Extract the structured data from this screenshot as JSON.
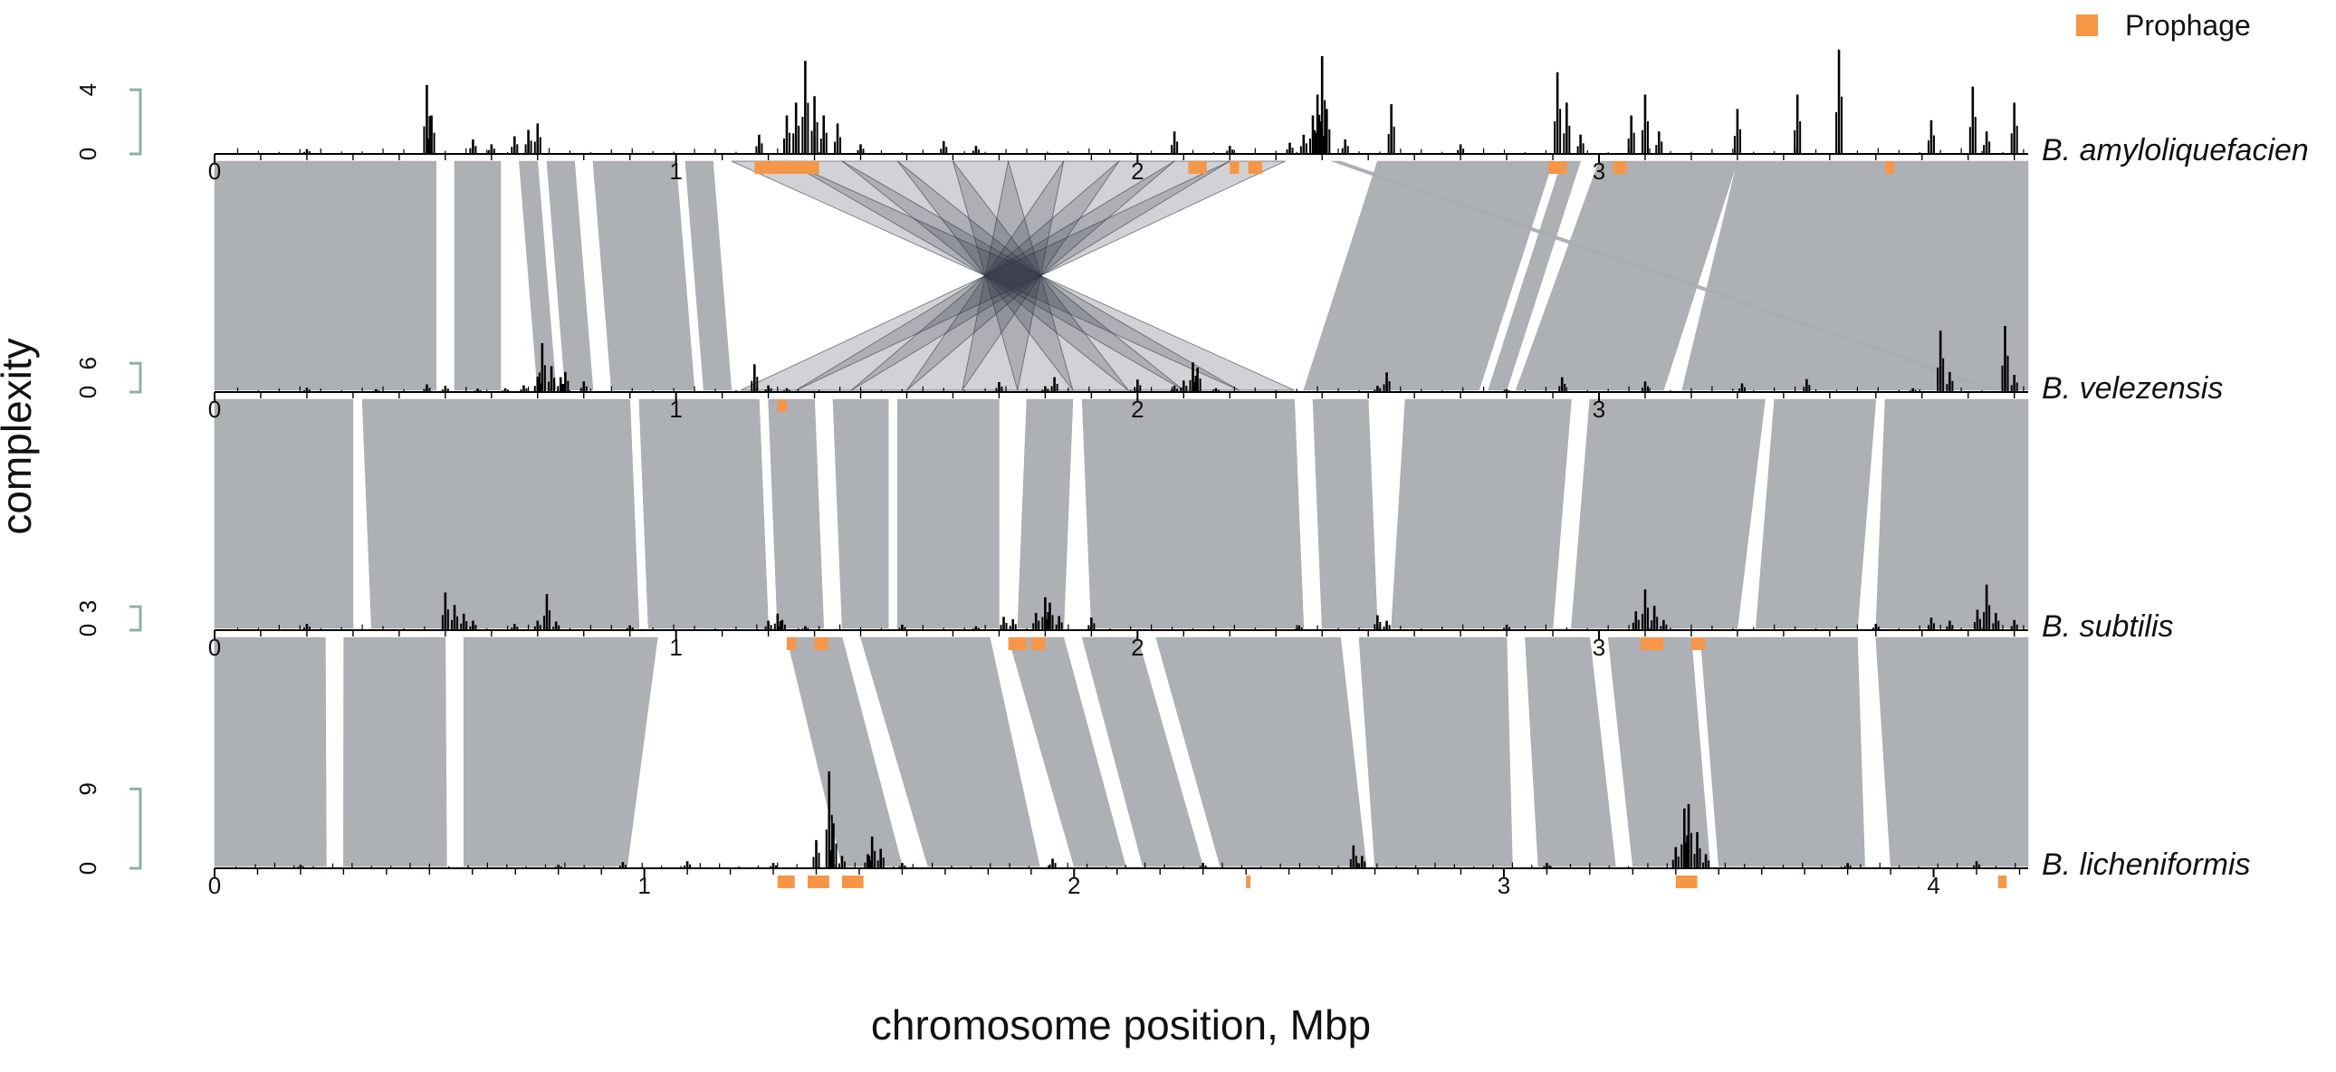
{
  "chart_data": {
    "type": "synteny-track-plot",
    "xlabel": "chromosome position, Mbp",
    "ylabel": "complexity",
    "legend": {
      "label": "Prophage",
      "color": "#f79646",
      "placement": "top-right"
    },
    "colors": {
      "synteny": "#a9acb1",
      "inversion": "#2c3440",
      "signal": "#000000",
      "axis": "#8fb0a6",
      "prophage": "#f79646"
    },
    "tracks": [
      {
        "name": "B. amyloliquefacien",
        "genome_mbp": 3.93,
        "y_ticks": [
          "0",
          "4"
        ],
        "y_tick_values": [
          0,
          4
        ],
        "y_max": 4.8,
        "x_ticks": [
          "0",
          "1",
          "2",
          "3"
        ],
        "x_tick_values": [
          0,
          1,
          2,
          3
        ],
        "peaks": [
          [
            0.2,
            0.3
          ],
          [
            0.46,
            4.3
          ],
          [
            0.47,
            2.4
          ],
          [
            0.56,
            0.9
          ],
          [
            0.6,
            0.6
          ],
          [
            0.65,
            1.1
          ],
          [
            0.68,
            1.5
          ],
          [
            0.7,
            1.9
          ],
          [
            1.18,
            1.2
          ],
          [
            1.24,
            2.4
          ],
          [
            1.26,
            3.2
          ],
          [
            1.28,
            5.8
          ],
          [
            1.3,
            3.6
          ],
          [
            1.32,
            2.4
          ],
          [
            1.35,
            1.9
          ],
          [
            1.4,
            0.6
          ],
          [
            1.58,
            0.8
          ],
          [
            1.65,
            0.5
          ],
          [
            2.08,
            1.4
          ],
          [
            2.2,
            0.5
          ],
          [
            2.33,
            0.7
          ],
          [
            2.36,
            1.2
          ],
          [
            2.38,
            2.4
          ],
          [
            2.39,
            3.7
          ],
          [
            2.4,
            6.1
          ],
          [
            2.41,
            2.8
          ],
          [
            2.45,
            0.9
          ],
          [
            2.55,
            3.1
          ],
          [
            2.7,
            0.6
          ],
          [
            2.91,
            5.1
          ],
          [
            2.93,
            3.2
          ],
          [
            2.96,
            1.2
          ],
          [
            3.07,
            2.4
          ],
          [
            3.1,
            3.7
          ],
          [
            3.13,
            1.4
          ],
          [
            3.3,
            2.8
          ],
          [
            3.43,
            3.7
          ],
          [
            3.52,
            6.5
          ],
          [
            3.72,
            2.1
          ],
          [
            3.81,
            4.2
          ],
          [
            3.84,
            1.4
          ],
          [
            3.9,
            3.2
          ]
        ],
        "prophages": [
          [
            1.17,
            1.31
          ],
          [
            2.11,
            2.15
          ],
          [
            2.2,
            2.22
          ],
          [
            2.24,
            2.27
          ],
          [
            2.89,
            2.93
          ],
          [
            3.03,
            3.06
          ],
          [
            3.62,
            3.64
          ]
        ]
      },
      {
        "name": "B. velezensis",
        "genome_mbp": 3.93,
        "y_ticks": [
          "0",
          "6"
        ],
        "y_tick_values": [
          0,
          6
        ],
        "y_max": 15.5,
        "x_ticks": [
          "0",
          "1",
          "2",
          "3"
        ],
        "x_tick_values": [
          0,
          1,
          2,
          3
        ],
        "peaks": [
          [
            0.2,
            0.9
          ],
          [
            0.35,
            0.6
          ],
          [
            0.46,
            1.6
          ],
          [
            0.5,
            1.3
          ],
          [
            0.57,
            0.7
          ],
          [
            0.63,
            0.8
          ],
          [
            0.67,
            1.4
          ],
          [
            0.7,
            3.2
          ],
          [
            0.71,
            10.2
          ],
          [
            0.73,
            5.4
          ],
          [
            0.75,
            3.1
          ],
          [
            0.76,
            4.2
          ],
          [
            0.8,
            2.2
          ],
          [
            1.17,
            5.8
          ],
          [
            1.2,
            1.4
          ],
          [
            1.24,
            0.8
          ],
          [
            1.7,
            2.1
          ],
          [
            1.8,
            1.2
          ],
          [
            1.82,
            3.1
          ],
          [
            2.0,
            2.6
          ],
          [
            2.08,
            1.3
          ],
          [
            2.1,
            2.4
          ],
          [
            2.12,
            6.2
          ],
          [
            2.13,
            5.1
          ],
          [
            2.17,
            0.8
          ],
          [
            2.52,
            1.3
          ],
          [
            2.54,
            4.1
          ],
          [
            2.8,
            0.6
          ],
          [
            2.92,
            3.1
          ],
          [
            3.1,
            2.2
          ],
          [
            3.31,
            1.8
          ],
          [
            3.45,
            2.7
          ],
          [
            3.68,
            0.8
          ],
          [
            3.74,
            12.8
          ],
          [
            3.76,
            4.2
          ],
          [
            3.88,
            13.8
          ],
          [
            3.9,
            3.6
          ]
        ],
        "prophages": [
          [
            1.22,
            1.24
          ]
        ]
      },
      {
        "name": "B. subtilis",
        "genome_mbp": 3.93,
        "y_ticks": [
          "0",
          "3"
        ],
        "y_tick_values": [
          0,
          3
        ],
        "y_max": 7.5,
        "x_ticks": [
          "0",
          "1",
          "2",
          "3"
        ],
        "x_tick_values": [
          0,
          1,
          2,
          3
        ],
        "peaks": [
          [
            0.2,
            0.8
          ],
          [
            0.5,
            4.8
          ],
          [
            0.52,
            3.2
          ],
          [
            0.54,
            2.1
          ],
          [
            0.56,
            1.2
          ],
          [
            0.65,
            0.8
          ],
          [
            0.7,
            1.2
          ],
          [
            0.72,
            4.6
          ],
          [
            0.74,
            1.1
          ],
          [
            0.9,
            0.6
          ],
          [
            1.2,
            1.2
          ],
          [
            1.22,
            2.1
          ],
          [
            1.23,
            1.3
          ],
          [
            1.28,
            0.5
          ],
          [
            1.49,
            0.7
          ],
          [
            1.65,
            0.5
          ],
          [
            1.71,
            1.7
          ],
          [
            1.73,
            1.4
          ],
          [
            1.78,
            2.2
          ],
          [
            1.8,
            4.2
          ],
          [
            1.81,
            3.5
          ],
          [
            1.83,
            1.8
          ],
          [
            1.9,
            1.6
          ],
          [
            2.35,
            0.6
          ],
          [
            2.52,
            1.9
          ],
          [
            2.54,
            1.2
          ],
          [
            2.8,
            0.7
          ],
          [
            3.08,
            2.4
          ],
          [
            3.1,
            5.2
          ],
          [
            3.12,
            3.1
          ],
          [
            3.14,
            1.3
          ],
          [
            3.6,
            0.8
          ],
          [
            3.72,
            1.6
          ],
          [
            3.76,
            1.2
          ],
          [
            3.82,
            2.6
          ],
          [
            3.84,
            5.8
          ],
          [
            3.86,
            2.2
          ],
          [
            3.9,
            1.3
          ]
        ],
        "prophages": [
          [
            1.24,
            1.26
          ],
          [
            1.3,
            1.33
          ],
          [
            1.72,
            1.76
          ],
          [
            1.77,
            1.8
          ],
          [
            3.09,
            3.14
          ],
          [
            3.2,
            3.23
          ]
        ]
      },
      {
        "name": "B. licheniformis",
        "genome_mbp": 4.22,
        "y_ticks": [
          "0",
          "9"
        ],
        "y_tick_values": [
          0,
          9
        ],
        "y_max": 11.2,
        "x_ticks": [
          "0",
          "1",
          "2",
          "3",
          "4"
        ],
        "x_tick_values": [
          0,
          1,
          2,
          3,
          4
        ],
        "peaks": [
          [
            0.2,
            0.4
          ],
          [
            0.8,
            0.4
          ],
          [
            0.95,
            0.7
          ],
          [
            1.1,
            0.8
          ],
          [
            1.3,
            0.6
          ],
          [
            1.4,
            3.2
          ],
          [
            1.43,
            11.0
          ],
          [
            1.44,
            5.1
          ],
          [
            1.46,
            1.4
          ],
          [
            1.52,
            1.6
          ],
          [
            1.53,
            3.6
          ],
          [
            1.55,
            2.2
          ],
          [
            1.6,
            0.6
          ],
          [
            1.95,
            1.1
          ],
          [
            2.3,
            0.6
          ],
          [
            2.65,
            2.6
          ],
          [
            2.67,
            1.4
          ],
          [
            3.1,
            0.6
          ],
          [
            3.4,
            2.4
          ],
          [
            3.42,
            6.8
          ],
          [
            3.43,
            7.3
          ],
          [
            3.45,
            4.1
          ],
          [
            3.47,
            1.6
          ],
          [
            3.8,
            0.6
          ],
          [
            4.1,
            0.8
          ]
        ],
        "prophages": [
          [
            1.31,
            1.35
          ],
          [
            1.38,
            1.43
          ],
          [
            1.46,
            1.51
          ],
          [
            2.4,
            2.41
          ],
          [
            3.4,
            3.45
          ],
          [
            4.15,
            4.17
          ]
        ]
      }
    ],
    "synteny_blocks": [
      {
        "between": [
          0,
          1
        ],
        "segments": [
          [
            0.0,
            0.48,
            0.0,
            0.48
          ],
          [
            0.52,
            0.62,
            0.52,
            0.62
          ],
          [
            0.66,
            0.7,
            0.7,
            0.74
          ],
          [
            0.72,
            0.78,
            0.76,
            0.82
          ],
          [
            0.82,
            1.0,
            0.86,
            1.04
          ],
          [
            1.02,
            1.08,
            1.06,
            1.12
          ],
          [
            2.42,
            2.44,
            3.85,
            3.87
          ],
          [
            2.52,
            2.9,
            2.36,
            2.74
          ],
          [
            2.92,
            2.96,
            2.76,
            2.8
          ],
          [
            3.0,
            3.3,
            2.82,
            3.14
          ],
          [
            3.3,
            3.93,
            3.18,
            3.93
          ]
        ]
      },
      {
        "between": [
          1,
          2
        ],
        "segments": [
          [
            0.0,
            0.3,
            0.0,
            0.3
          ],
          [
            0.32,
            0.9,
            0.34,
            0.92
          ],
          [
            0.92,
            1.18,
            0.94,
            1.2
          ],
          [
            1.2,
            1.3,
            1.22,
            1.32
          ],
          [
            1.34,
            1.46,
            1.36,
            1.46
          ],
          [
            1.48,
            1.7,
            1.48,
            1.7
          ],
          [
            1.76,
            1.86,
            1.74,
            1.84
          ],
          [
            1.88,
            2.34,
            1.9,
            2.36
          ],
          [
            2.38,
            2.5,
            2.4,
            2.52
          ],
          [
            2.58,
            2.94,
            2.55,
            2.9
          ],
          [
            2.98,
            3.36,
            2.94,
            3.3
          ],
          [
            3.38,
            3.6,
            3.34,
            3.56
          ],
          [
            3.62,
            3.93,
            3.6,
            3.93
          ]
        ]
      },
      {
        "between": [
          2,
          3
        ],
        "segments": [
          [
            0.0,
            0.24,
            0.0,
            0.26
          ],
          [
            0.28,
            0.5,
            0.3,
            0.54
          ],
          [
            0.54,
            0.96,
            0.58,
            0.96
          ],
          [
            1.24,
            1.36,
            1.46,
            1.6
          ],
          [
            1.4,
            1.68,
            1.66,
            1.92
          ],
          [
            1.72,
            1.84,
            2.0,
            2.12
          ],
          [
            1.88,
            2.0,
            2.16,
            2.3
          ],
          [
            2.04,
            2.44,
            2.34,
            2.68
          ],
          [
            2.48,
            2.8,
            2.7,
            3.02
          ],
          [
            2.84,
            2.98,
            3.08,
            3.26
          ],
          [
            3.02,
            3.2,
            3.3,
            3.48
          ],
          [
            3.22,
            3.56,
            3.5,
            3.84
          ],
          [
            3.6,
            3.93,
            3.9,
            4.22
          ]
        ]
      }
    ],
    "inversions": [
      {
        "between": [
          0,
          1
        ],
        "segments": [
          [
            1.12,
            1.24,
            2.22,
            2.34
          ],
          [
            1.24,
            1.36,
            2.1,
            2.22
          ],
          [
            1.36,
            1.48,
            1.98,
            2.1
          ],
          [
            1.48,
            1.6,
            1.86,
            1.98
          ],
          [
            1.6,
            1.72,
            1.74,
            1.86
          ],
          [
            1.72,
            1.84,
            1.62,
            1.74
          ],
          [
            1.84,
            1.96,
            1.5,
            1.62
          ],
          [
            1.96,
            2.08,
            1.38,
            1.5
          ],
          [
            2.08,
            2.2,
            1.26,
            1.38
          ],
          [
            2.2,
            2.32,
            1.14,
            1.26
          ]
        ]
      }
    ]
  }
}
